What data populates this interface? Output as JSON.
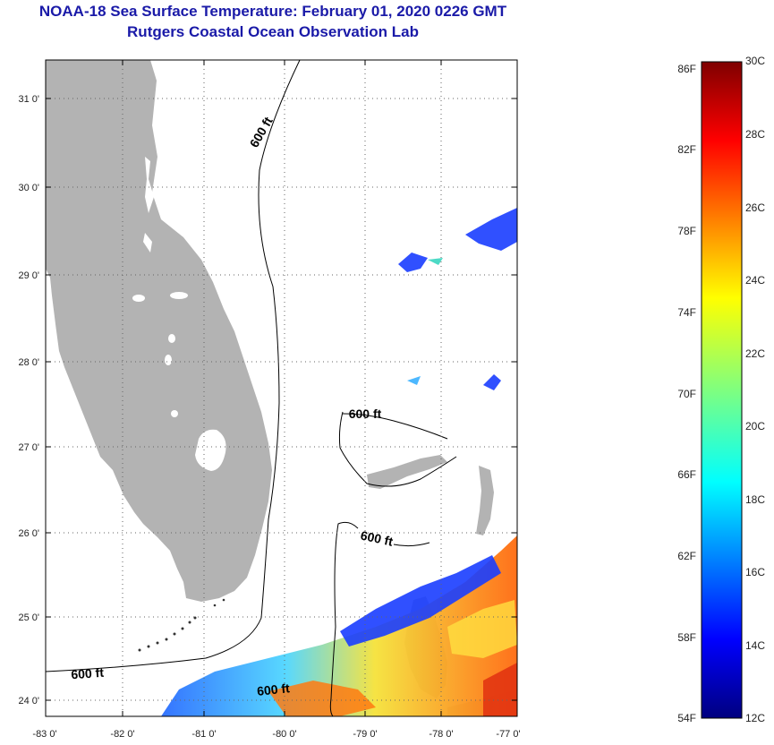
{
  "title": {
    "line1": "NOAA-18 Sea Surface Temperature:  February 01, 2020 0226 GMT",
    "line2": "Rutgers Coastal Ocean Observation Lab"
  },
  "map": {
    "lon_labels": [
      "-83 0'",
      "-82 0'",
      "-81 0'",
      "-80 0'",
      "-79 0'",
      "-78 0'",
      "-77 0'"
    ],
    "lat_labels": [
      "24 0'",
      "25 0'",
      "26 0'",
      "27 0'",
      "28 0'",
      "29 0'",
      "30 0'",
      "31 0'"
    ],
    "contour_labels": [
      "600 ft",
      "600 ft",
      "600 ft",
      "600 ft",
      "600 ft"
    ],
    "colors": {
      "land": "#b3b3b3",
      "frame": "#000000",
      "grid": "#666666",
      "title": "#1a1aa8"
    }
  },
  "colorbar": {
    "fahrenheit_labels": [
      "86F",
      "82F",
      "78F",
      "74F",
      "70F",
      "66F",
      "62F",
      "58F",
      "54F"
    ],
    "celsius_labels": [
      "30C",
      "28C",
      "26C",
      "24C",
      "22C",
      "20C",
      "18C",
      "16C",
      "14C",
      "12C"
    ],
    "range_c": [
      12,
      30
    ],
    "colormap": "jet"
  }
}
